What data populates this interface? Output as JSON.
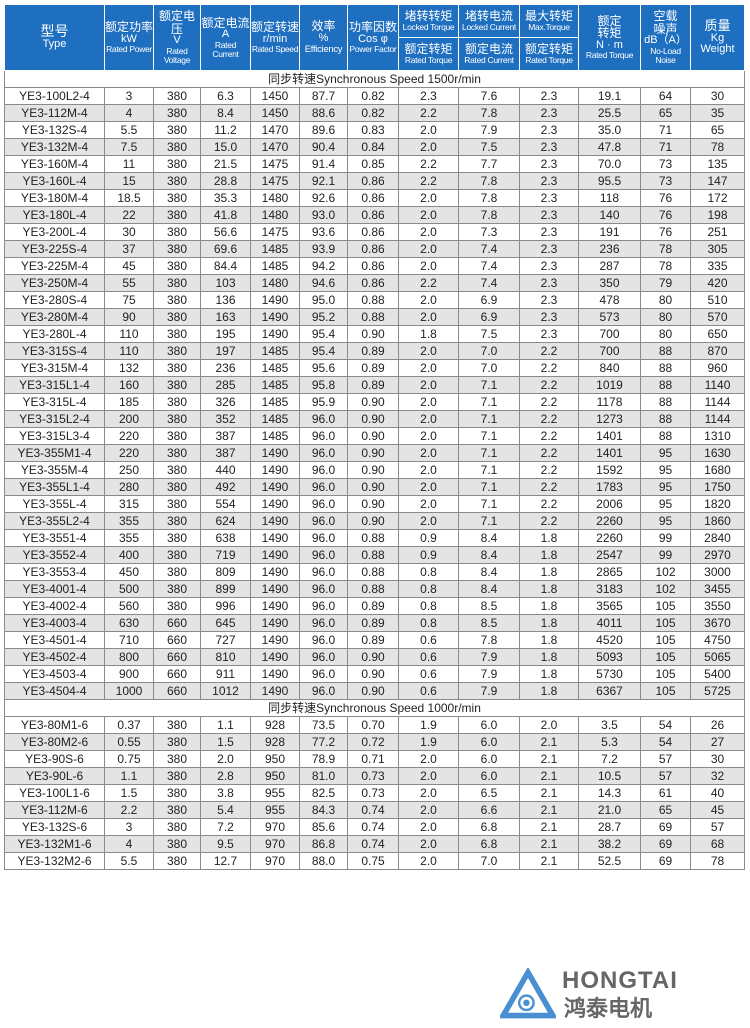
{
  "header": {
    "type": {
      "cn": "型号",
      "en": "Type"
    },
    "power": {
      "cn": "额定功率",
      "unit": "kW",
      "en": "Rated Power"
    },
    "voltage": {
      "cn": "额定电压",
      "unit": "V",
      "en": "Rated Voltage"
    },
    "current": {
      "cn": "额定电流",
      "unit": "A",
      "en": "Rated Current"
    },
    "speed": {
      "cn": "额定转速",
      "unit": "r/min",
      "en": "Rated Speed"
    },
    "efficiency": {
      "cn": "效率",
      "unit": "%",
      "en": "Efficiency"
    },
    "pf": {
      "cn": "功率因数",
      "unit": "Cos φ",
      "en": "Power Factor"
    },
    "locked_torque": {
      "cn_top": "堵转转矩",
      "en_top": "Locked Torque",
      "cn_bottom": "额定转矩",
      "en_bottom": "Rated Torque"
    },
    "locked_current": {
      "cn_top": "堵转电流",
      "en_top": "Locked Current",
      "cn_bottom": "额定电流",
      "en_bottom": "Rated Current"
    },
    "max_torque": {
      "cn_top": "最大转矩",
      "en_top": "Max.Torque",
      "cn_bottom": "额定转矩",
      "en_bottom": "Rated Torque"
    },
    "rated_torque": {
      "cn1": "额定",
      "cn2": "转矩",
      "unit": "N · m",
      "en": "Rated Torque"
    },
    "noise": {
      "cn1": "空载",
      "cn2": "噪声",
      "unit": "dB（A）",
      "en1": "No-Load",
      "en2": "Noise"
    },
    "weight": {
      "cn": "质量",
      "unit": "Kg",
      "en": "Weight"
    }
  },
  "sections": [
    {
      "title": "同步转速Synchronous Speed  1500r/min",
      "rows": [
        [
          "YE3-100L2-4",
          "3",
          "380",
          "6.3",
          "1450",
          "87.7",
          "0.82",
          "2.3",
          "7.6",
          "2.3",
          "19.1",
          "64",
          "30"
        ],
        [
          "YE3-112M-4",
          "4",
          "380",
          "8.4",
          "1450",
          "88.6",
          "0.82",
          "2.2",
          "7.8",
          "2.3",
          "25.5",
          "65",
          "35"
        ],
        [
          "YE3-132S-4",
          "5.5",
          "380",
          "11.2",
          "1470",
          "89.6",
          "0.83",
          "2.0",
          "7.9",
          "2.3",
          "35.0",
          "71",
          "65"
        ],
        [
          "YE3-132M-4",
          "7.5",
          "380",
          "15.0",
          "1470",
          "90.4",
          "0.84",
          "2.0",
          "7.5",
          "2.3",
          "47.8",
          "71",
          "78"
        ],
        [
          "YE3-160M-4",
          "11",
          "380",
          "21.5",
          "1475",
          "91.4",
          "0.85",
          "2.2",
          "7.7",
          "2.3",
          "70.0",
          "73",
          "135"
        ],
        [
          "YE3-160L-4",
          "15",
          "380",
          "28.8",
          "1475",
          "92.1",
          "0.86",
          "2.2",
          "7.8",
          "2.3",
          "95.5",
          "73",
          "147"
        ],
        [
          "YE3-180M-4",
          "18.5",
          "380",
          "35.3",
          "1480",
          "92.6",
          "0.86",
          "2.0",
          "7.8",
          "2.3",
          "118",
          "76",
          "172"
        ],
        [
          "YE3-180L-4",
          "22",
          "380",
          "41.8",
          "1480",
          "93.0",
          "0.86",
          "2.0",
          "7.8",
          "2.3",
          "140",
          "76",
          "198"
        ],
        [
          "YE3-200L-4",
          "30",
          "380",
          "56.6",
          "1475",
          "93.6",
          "0.86",
          "2.0",
          "7.3",
          "2.3",
          "191",
          "76",
          "251"
        ],
        [
          "YE3-225S-4",
          "37",
          "380",
          "69.6",
          "1485",
          "93.9",
          "0.86",
          "2.0",
          "7.4",
          "2.3",
          "236",
          "78",
          "305"
        ],
        [
          "YE3-225M-4",
          "45",
          "380",
          "84.4",
          "1485",
          "94.2",
          "0.86",
          "2.0",
          "7.4",
          "2.3",
          "287",
          "78",
          "335"
        ],
        [
          "YE3-250M-4",
          "55",
          "380",
          "103",
          "1480",
          "94.6",
          "0.86",
          "2.2",
          "7.4",
          "2.3",
          "350",
          "79",
          "420"
        ],
        [
          "YE3-280S-4",
          "75",
          "380",
          "136",
          "1490",
          "95.0",
          "0.88",
          "2.0",
          "6.9",
          "2.3",
          "478",
          "80",
          "510"
        ],
        [
          "YE3-280M-4",
          "90",
          "380",
          "163",
          "1490",
          "95.2",
          "0.88",
          "2.0",
          "6.9",
          "2.3",
          "573",
          "80",
          "570"
        ],
        [
          "YE3-280L-4",
          "110",
          "380",
          "195",
          "1490",
          "95.4",
          "0.90",
          "1.8",
          "7.5",
          "2.3",
          "700",
          "80",
          "650"
        ],
        [
          "YE3-315S-4",
          "110",
          "380",
          "197",
          "1485",
          "95.4",
          "0.89",
          "2.0",
          "7.0",
          "2.2",
          "700",
          "88",
          "870"
        ],
        [
          "YE3-315M-4",
          "132",
          "380",
          "236",
          "1485",
          "95.6",
          "0.89",
          "2.0",
          "7.0",
          "2.2",
          "840",
          "88",
          "960"
        ],
        [
          "YE3-315L1-4",
          "160",
          "380",
          "285",
          "1485",
          "95.8",
          "0.89",
          "2.0",
          "7.1",
          "2.2",
          "1019",
          "88",
          "1140"
        ],
        [
          "YE3-315L-4",
          "185",
          "380",
          "326",
          "1485",
          "95.9",
          "0.90",
          "2.0",
          "7.1",
          "2.2",
          "1178",
          "88",
          "1144"
        ],
        [
          "YE3-315L2-4",
          "200",
          "380",
          "352",
          "1485",
          "96.0",
          "0.90",
          "2.0",
          "7.1",
          "2.2",
          "1273",
          "88",
          "1144"
        ],
        [
          "YE3-315L3-4",
          "220",
          "380",
          "387",
          "1485",
          "96.0",
          "0.90",
          "2.0",
          "7.1",
          "2.2",
          "1401",
          "88",
          "1310"
        ],
        [
          "YE3-355M1-4",
          "220",
          "380",
          "387",
          "1490",
          "96.0",
          "0.90",
          "2.0",
          "7.1",
          "2.2",
          "1401",
          "95",
          "1630"
        ],
        [
          "YE3-355M-4",
          "250",
          "380",
          "440",
          "1490",
          "96.0",
          "0.90",
          "2.0",
          "7.1",
          "2.2",
          "1592",
          "95",
          "1680"
        ],
        [
          "YE3-355L1-4",
          "280",
          "380",
          "492",
          "1490",
          "96.0",
          "0.90",
          "2.0",
          "7.1",
          "2.2",
          "1783",
          "95",
          "1750"
        ],
        [
          "YE3-355L-4",
          "315",
          "380",
          "554",
          "1490",
          "96.0",
          "0.90",
          "2.0",
          "7.1",
          "2.2",
          "2006",
          "95",
          "1820"
        ],
        [
          "YE3-355L2-4",
          "355",
          "380",
          "624",
          "1490",
          "96.0",
          "0.90",
          "2.0",
          "7.1",
          "2.2",
          "2260",
          "95",
          "1860"
        ],
        [
          "YE3-3551-4",
          "355",
          "380",
          "638",
          "1490",
          "96.0",
          "0.88",
          "0.9",
          "8.4",
          "1.8",
          "2260",
          "99",
          "2840"
        ],
        [
          "YE3-3552-4",
          "400",
          "380",
          "719",
          "1490",
          "96.0",
          "0.88",
          "0.9",
          "8.4",
          "1.8",
          "2547",
          "99",
          "2970"
        ],
        [
          "YE3-3553-4",
          "450",
          "380",
          "809",
          "1490",
          "96.0",
          "0.88",
          "0.8",
          "8.4",
          "1.8",
          "2865",
          "102",
          "3000"
        ],
        [
          "YE3-4001-4",
          "500",
          "380",
          "899",
          "1490",
          "96.0",
          "0.88",
          "0.8",
          "8.4",
          "1.8",
          "3183",
          "102",
          "3455"
        ],
        [
          "YE3-4002-4",
          "560",
          "380",
          "996",
          "1490",
          "96.0",
          "0.89",
          "0.8",
          "8.5",
          "1.8",
          "3565",
          "105",
          "3550"
        ],
        [
          "YE3-4003-4",
          "630",
          "660",
          "645",
          "1490",
          "96.0",
          "0.89",
          "0.8",
          "8.5",
          "1.8",
          "4011",
          "105",
          "3670"
        ],
        [
          "YE3-4501-4",
          "710",
          "660",
          "727",
          "1490",
          "96.0",
          "0.89",
          "0.6",
          "7.8",
          "1.8",
          "4520",
          "105",
          "4750"
        ],
        [
          "YE3-4502-4",
          "800",
          "660",
          "810",
          "1490",
          "96.0",
          "0.90",
          "0.6",
          "7.9",
          "1.8",
          "5093",
          "105",
          "5065"
        ],
        [
          "YE3-4503-4",
          "900",
          "660",
          "911",
          "1490",
          "96.0",
          "0.90",
          "0.6",
          "7.9",
          "1.8",
          "5730",
          "105",
          "5400"
        ],
        [
          "YE3-4504-4",
          "1000",
          "660",
          "1012",
          "1490",
          "96.0",
          "0.90",
          "0.6",
          "7.9",
          "1.8",
          "6367",
          "105",
          "5725"
        ]
      ]
    },
    {
      "title": "同步转速Synchronous Speed  1000r/min",
      "rows": [
        [
          "YE3-80M1-6",
          "0.37",
          "380",
          "1.1",
          "928",
          "73.5",
          "0.70",
          "1.9",
          "6.0",
          "2.0",
          "3.5",
          "54",
          "26"
        ],
        [
          "YE3-80M2-6",
          "0.55",
          "380",
          "1.5",
          "928",
          "77.2",
          "0.72",
          "1.9",
          "6.0",
          "2.1",
          "5.3",
          "54",
          "27"
        ],
        [
          "YE3-90S-6",
          "0.75",
          "380",
          "2.0",
          "950",
          "78.9",
          "0.71",
          "2.0",
          "6.0",
          "2.1",
          "7.2",
          "57",
          "30"
        ],
        [
          "YE3-90L-6",
          "1.1",
          "380",
          "2.8",
          "950",
          "81.0",
          "0.73",
          "2.0",
          "6.0",
          "2.1",
          "10.5",
          "57",
          "32"
        ],
        [
          "YE3-100L1-6",
          "1.5",
          "380",
          "3.8",
          "955",
          "82.5",
          "0.73",
          "2.0",
          "6.5",
          "2.1",
          "14.3",
          "61",
          "40"
        ],
        [
          "YE3-112M-6",
          "2.2",
          "380",
          "5.4",
          "955",
          "84.3",
          "0.74",
          "2.0",
          "6.6",
          "2.1",
          "21.0",
          "65",
          "45"
        ],
        [
          "YE3-132S-6",
          "3",
          "380",
          "7.2",
          "970",
          "85.6",
          "0.74",
          "2.0",
          "6.8",
          "2.1",
          "28.7",
          "69",
          "57"
        ],
        [
          "YE3-132M1-6",
          "4",
          "380",
          "9.5",
          "970",
          "86.8",
          "0.74",
          "2.0",
          "6.8",
          "2.1",
          "38.2",
          "69",
          "68"
        ],
        [
          "YE3-132M2-6",
          "5.5",
          "380",
          "12.7",
          "970",
          "88.0",
          "0.75",
          "2.0",
          "7.0",
          "2.1",
          "52.5",
          "69",
          "78"
        ]
      ]
    }
  ],
  "logo": {
    "en": "HONGTAI",
    "cn": "鸿泰电机"
  },
  "colors": {
    "header_bg": "#1f6fc1",
    "alt_row": "#e4e4e4"
  }
}
